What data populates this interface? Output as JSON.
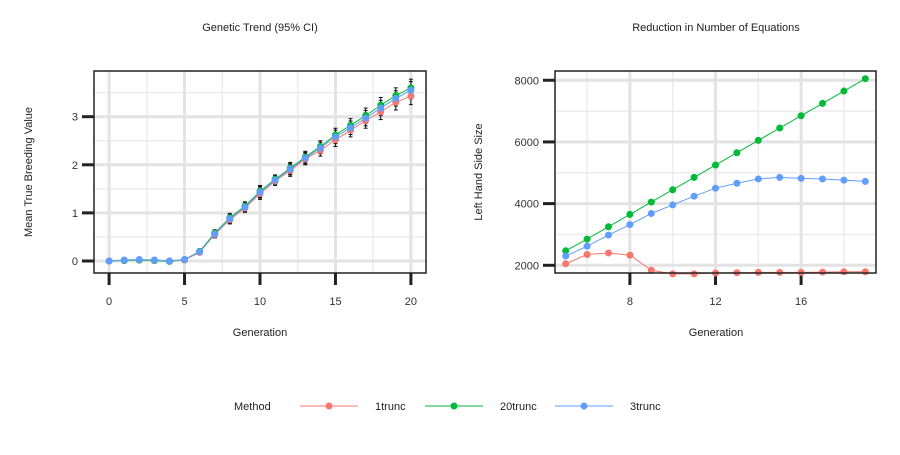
{
  "chart_data": [
    {
      "type": "line",
      "title": "Genetic Trend (95% CI)",
      "xlabel": "Generation",
      "ylabel": "Mean True Breeding Value",
      "xlim": [
        -1,
        21
      ],
      "ylim": [
        -0.25,
        3.95
      ],
      "xticks": [
        0,
        5,
        10,
        15,
        20
      ],
      "yticks": [
        0,
        1,
        2,
        3
      ],
      "grid": true,
      "error_bars": true,
      "x": [
        0,
        1,
        2,
        3,
        4,
        5,
        6,
        7,
        8,
        9,
        10,
        11,
        12,
        13,
        14,
        15,
        16,
        17,
        18,
        19,
        20
      ],
      "series": [
        {
          "name": "1trunc",
          "color": "#F8766D",
          "values": [
            0,
            0.01,
            0.02,
            0.01,
            0.0,
            0.02,
            0.18,
            0.55,
            0.86,
            1.1,
            1.4,
            1.66,
            1.88,
            2.12,
            2.3,
            2.52,
            2.72,
            2.92,
            3.1,
            3.3,
            3.43
          ]
        },
        {
          "name": "20trunc",
          "color": "#00BA38",
          "values": [
            0,
            0.01,
            0.02,
            0.01,
            -0.01,
            0.03,
            0.2,
            0.58,
            0.9,
            1.14,
            1.45,
            1.7,
            1.93,
            2.16,
            2.38,
            2.62,
            2.82,
            3.02,
            3.24,
            3.44,
            3.6
          ]
        },
        {
          "name": "3trunc",
          "color": "#619CFF",
          "values": [
            0,
            0.02,
            0.03,
            0.02,
            0.0,
            0.03,
            0.19,
            0.56,
            0.88,
            1.12,
            1.43,
            1.68,
            1.91,
            2.14,
            2.35,
            2.58,
            2.77,
            2.97,
            3.18,
            3.38,
            3.55
          ]
        }
      ],
      "ci_halfwidth": [
        0.02,
        0.02,
        0.02,
        0.02,
        0.04,
        0.04,
        0.05,
        0.07,
        0.09,
        0.09,
        0.12,
        0.09,
        0.12,
        0.12,
        0.12,
        0.14,
        0.14,
        0.16,
        0.16,
        0.16,
        0.18
      ]
    },
    {
      "type": "line",
      "title": "Reduction in Number of Equations",
      "xlabel": "Generation",
      "ylabel": "Left Hand Side Size",
      "xlim": [
        4.5,
        19.5
      ],
      "ylim": [
        1750,
        8300
      ],
      "xticks": [
        8,
        12,
        16
      ],
      "yticks": [
        2000,
        4000,
        6000,
        8000
      ],
      "grid": true,
      "x": [
        5,
        6,
        7,
        8,
        9,
        10,
        11,
        12,
        13,
        14,
        15,
        16,
        17,
        18,
        19
      ],
      "series": [
        {
          "name": "1trunc",
          "color": "#F8766D",
          "values": [
            2050,
            2350,
            2400,
            2330,
            1840,
            1720,
            1720,
            1750,
            1760,
            1770,
            1770,
            1770,
            1780,
            1790,
            1790
          ]
        },
        {
          "name": "20trunc",
          "color": "#00BA38",
          "values": [
            2470,
            2850,
            3250,
            3650,
            4050,
            4450,
            4850,
            5250,
            5650,
            6050,
            6450,
            6850,
            7250,
            7650,
            8050
          ]
        },
        {
          "name": "3trunc",
          "color": "#619CFF",
          "values": [
            2300,
            2620,
            2980,
            3320,
            3680,
            3960,
            4240,
            4500,
            4660,
            4800,
            4850,
            4820,
            4800,
            4760,
            4720
          ]
        }
      ]
    }
  ],
  "legend": {
    "title": "Method",
    "placement": "bottom",
    "items": [
      {
        "label": "1trunc",
        "color": "#F8766D"
      },
      {
        "label": "20trunc",
        "color": "#00BA38"
      },
      {
        "label": "3trunc",
        "color": "#619CFF"
      }
    ]
  }
}
